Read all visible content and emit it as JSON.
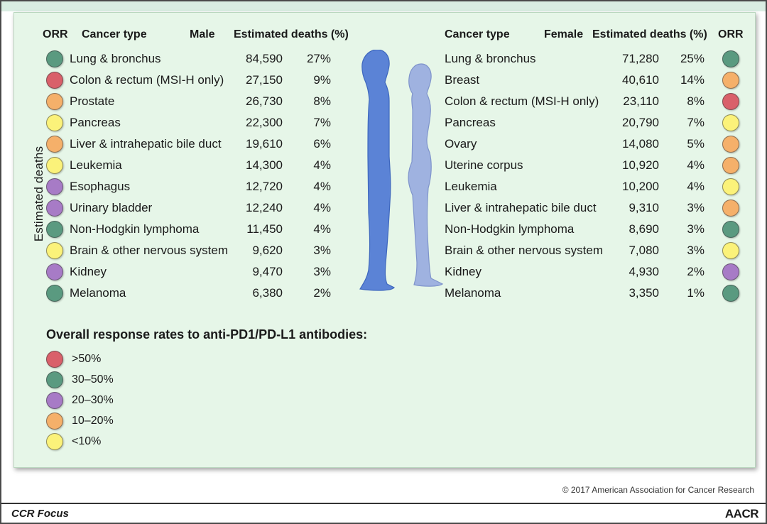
{
  "headers": {
    "orr_left": "ORR",
    "cancer_type_left": "Cancer type",
    "male": "Male",
    "deaths_left": "Estimated deaths (%)",
    "cancer_type_right": "Cancer type",
    "female": "Female",
    "deaths_right": "Estimated deaths (%)",
    "orr_right": "ORR"
  },
  "y_axis_label": "Estimated deaths",
  "orr_colors": {
    ">50%": "#d9606a",
    "30–50%": "#5a9a80",
    "20–30%": "#a77bc6",
    "10–20%": "#f5b06a",
    "<10%": "#fbf27a"
  },
  "male": [
    {
      "cancer": "Lung & bronchus",
      "deaths": "84,590",
      "pct": "27%",
      "orr": "30–50%"
    },
    {
      "cancer": "Colon & rectum (MSI-H only)",
      "deaths": "27,150",
      "pct": "9%",
      "orr": ">50%"
    },
    {
      "cancer": "Prostate",
      "deaths": "26,730",
      "pct": "8%",
      "orr": "10–20%"
    },
    {
      "cancer": "Pancreas",
      "deaths": "22,300",
      "pct": "7%",
      "orr": "<10%"
    },
    {
      "cancer": "Liver & intrahepatic bile duct",
      "deaths": "19,610",
      "pct": "6%",
      "orr": "10–20%"
    },
    {
      "cancer": "Leukemia",
      "deaths": "14,300",
      "pct": "4%",
      "orr": "<10%"
    },
    {
      "cancer": "Esophagus",
      "deaths": "12,720",
      "pct": "4%",
      "orr": "20–30%"
    },
    {
      "cancer": "Urinary bladder",
      "deaths": "12,240",
      "pct": "4%",
      "orr": "20–30%"
    },
    {
      "cancer": "Non-Hodgkin lymphoma",
      "deaths": "11,450",
      "pct": "4%",
      "orr": "30–50%"
    },
    {
      "cancer": "Brain & other nervous system",
      "deaths": "9,620",
      "pct": "3%",
      "orr": "<10%"
    },
    {
      "cancer": "Kidney",
      "deaths": "9,470",
      "pct": "3%",
      "orr": "20–30%"
    },
    {
      "cancer": "Melanoma",
      "deaths": "6,380",
      "pct": "2%",
      "orr": "30–50%"
    }
  ],
  "female": [
    {
      "cancer": "Lung & bronchus",
      "deaths": "71,280",
      "pct": "25%",
      "orr": "30–50%"
    },
    {
      "cancer": "Breast",
      "deaths": "40,610",
      "pct": "14%",
      "orr": "10–20%"
    },
    {
      "cancer": "Colon & rectum (MSI-H only)",
      "deaths": "23,110",
      "pct": "8%",
      "orr": ">50%"
    },
    {
      "cancer": "Pancreas",
      "deaths": "20,790",
      "pct": "7%",
      "orr": "<10%"
    },
    {
      "cancer": "Ovary",
      "deaths": "14,080",
      "pct": "5%",
      "orr": "10–20%"
    },
    {
      "cancer": "Uterine corpus",
      "deaths": "10,920",
      "pct": "4%",
      "orr": "10–20%"
    },
    {
      "cancer": "Leukemia",
      "deaths": "10,200",
      "pct": "4%",
      "orr": "<10%"
    },
    {
      "cancer": "Liver & intrahepatic bile duct",
      "deaths": "9,310",
      "pct": "3%",
      "orr": "10–20%"
    },
    {
      "cancer": "Non-Hodgkin lymphoma",
      "deaths": "8,690",
      "pct": "3%",
      "orr": "30–50%"
    },
    {
      "cancer": "Brain & other nervous system",
      "deaths": "7,080",
      "pct": "3%",
      "orr": "<10%"
    },
    {
      "cancer": "Kidney",
      "deaths": "4,930",
      "pct": "2%",
      "orr": "20–30%"
    },
    {
      "cancer": "Melanoma",
      "deaths": "3,350",
      "pct": "1%",
      "orr": "30–50%"
    }
  ],
  "legend": {
    "title": "Overall response rates to anti-PD1/PD-L1 antibodies:",
    "items": [
      ">50%",
      "30–50%",
      "20–30%",
      "10–20%",
      "<10%"
    ]
  },
  "silhouettes": {
    "male_color": "#5b83d6",
    "female_color": "#9fb2e0"
  },
  "footer": {
    "copyright": "© 2017 American Association for Cancer Research",
    "journal": "CCR Focus",
    "publisher": "AACR"
  }
}
